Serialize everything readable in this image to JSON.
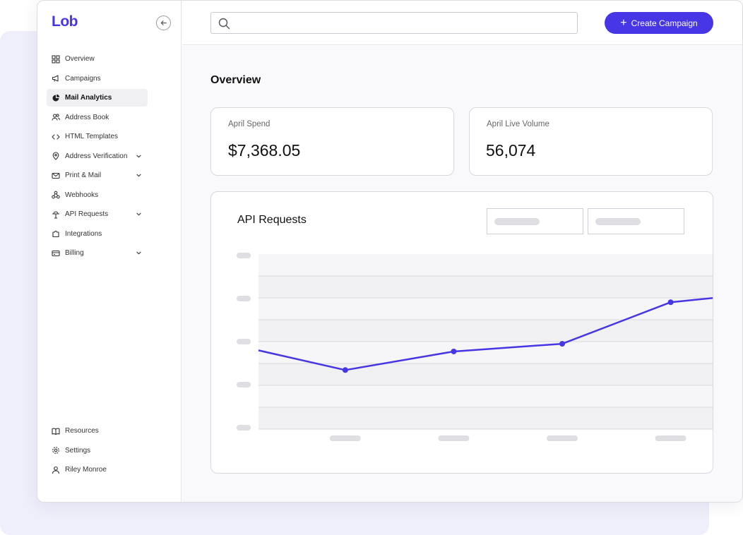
{
  "brand": {
    "logo": "Lob",
    "accent": "#4736e6"
  },
  "sidebar": {
    "items": [
      {
        "label": "Overview",
        "icon": "grid-icon",
        "active": false,
        "expandable": false
      },
      {
        "label": "Campaigns",
        "icon": "megaphone-icon",
        "active": false,
        "expandable": false
      },
      {
        "label": "Mail Analytics",
        "icon": "pie-chart-icon",
        "active": true,
        "expandable": false
      },
      {
        "label": "Address Book",
        "icon": "users-icon",
        "active": false,
        "expandable": false
      },
      {
        "label": "HTML Templates",
        "icon": "code-icon",
        "active": false,
        "expandable": false
      },
      {
        "label": "Address Verification",
        "icon": "location-pin-icon",
        "active": false,
        "expandable": true
      },
      {
        "label": "Print & Mail",
        "icon": "mail-icon",
        "active": false,
        "expandable": true
      },
      {
        "label": "Webhooks",
        "icon": "webhook-icon",
        "active": false,
        "expandable": false
      },
      {
        "label": "API Requests",
        "icon": "api-icon",
        "active": false,
        "expandable": true
      },
      {
        "label": "Integrations",
        "icon": "puzzle-icon",
        "active": false,
        "expandable": false
      },
      {
        "label": "Billing",
        "icon": "credit-card-icon",
        "active": false,
        "expandable": true
      }
    ],
    "bottom_items": [
      {
        "label": "Resources",
        "icon": "book-icon"
      },
      {
        "label": "Settings",
        "icon": "gear-icon"
      },
      {
        "label": "Riley Monroe",
        "icon": "user-icon"
      }
    ]
  },
  "topbar": {
    "search_placeholder": "",
    "create_button_label": "Create Campaign"
  },
  "overview": {
    "title": "Overview",
    "stats": [
      {
        "label": "April Spend",
        "value": "$7,368.05"
      },
      {
        "label": "April Live Volume",
        "value": "56,074"
      }
    ]
  },
  "chart_data": {
    "type": "line",
    "title": "API Requests",
    "xlabel": "",
    "ylabel": "",
    "ylim": [
      0,
      8
    ],
    "grid": true,
    "legend": "none",
    "color": "#4736e6",
    "x_axis_labels_visible": false,
    "y_axis_labels_visible": false,
    "series": [
      {
        "x": [
          -0.8,
          0,
          1,
          2,
          3,
          3.4
        ],
        "y": [
          3.6,
          2.7,
          3.55,
          3.9,
          5.8,
          6.0
        ],
        "markers": [
          false,
          true,
          true,
          true,
          true,
          false
        ]
      }
    ]
  }
}
